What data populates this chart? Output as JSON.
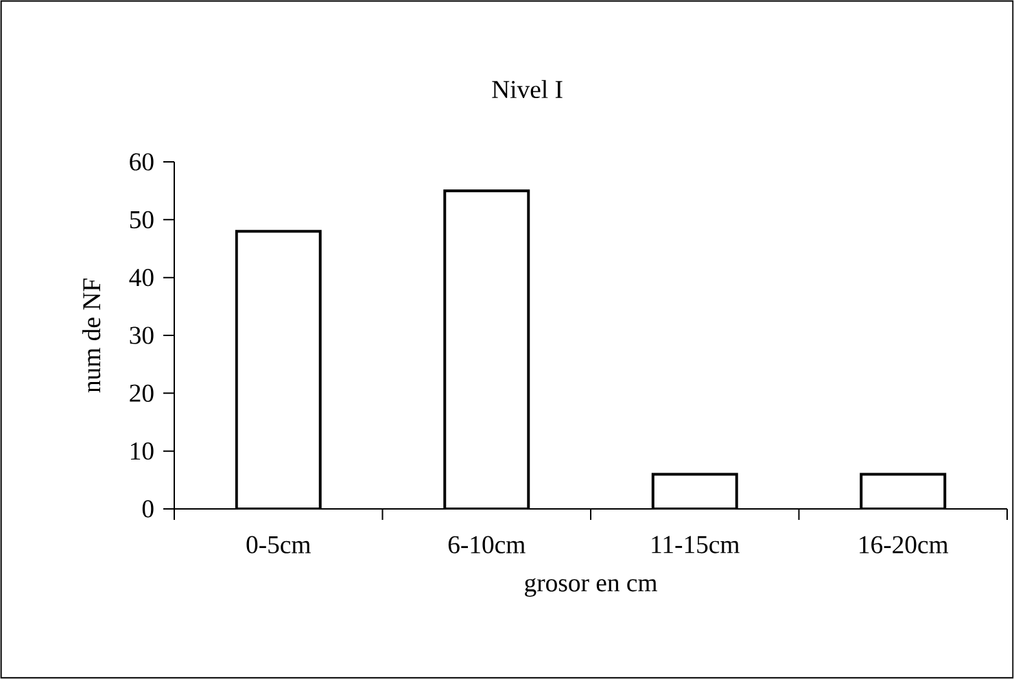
{
  "chart_data": {
    "type": "bar",
    "title": "Nivel I",
    "xlabel": "grosor en cm",
    "ylabel": "num de NF",
    "categories": [
      "0-5cm",
      "6-10cm",
      "11-15cm",
      "16-20cm"
    ],
    "values": [
      48,
      55,
      6,
      6
    ],
    "color": "#ffffff",
    "ylim": [
      0,
      60
    ],
    "yticks": [
      0,
      10,
      20,
      30,
      40,
      50,
      60
    ]
  }
}
